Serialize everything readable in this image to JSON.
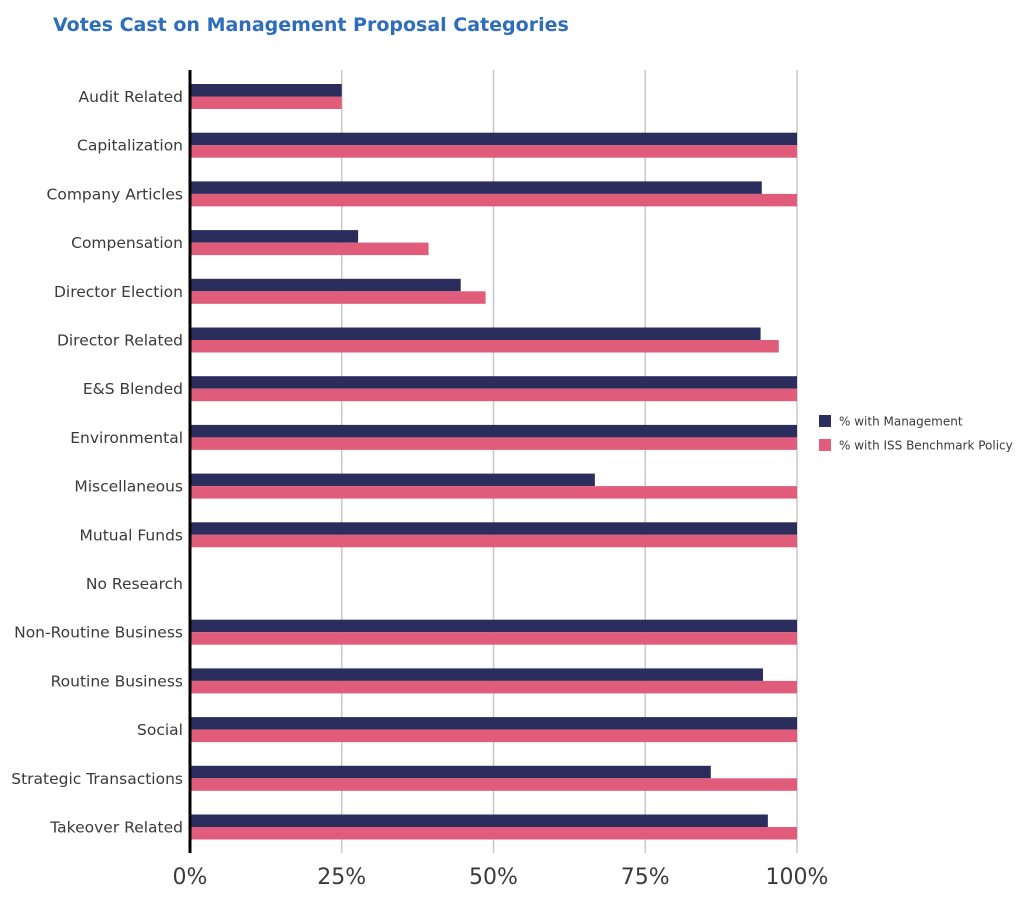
{
  "chart_data": {
    "type": "bar",
    "orientation": "horizontal",
    "title": "Votes Cast on Management Proposal Categories",
    "categories": [
      "Audit Related",
      "Capitalization",
      "Company Articles",
      "Compensation",
      "Director Election",
      "Director Related",
      "E&S Blended",
      "Environmental",
      "Miscellaneous",
      "Mutual Funds",
      "No Research",
      "Non-Routine Business",
      "Routine Business",
      "Social",
      "Strategic Transactions",
      "Takeover Related"
    ],
    "series": [
      {
        "name": "% with Management",
        "color": "#2b2d5c",
        "values": [
          25,
          100,
          94.2,
          27.7,
          44.6,
          94,
          100,
          100,
          66.7,
          100,
          0,
          100,
          94.4,
          100,
          85.8,
          95.2
        ]
      },
      {
        "name": "% with ISS Benchmark Policy",
        "color": "#e05c7a",
        "values": [
          25,
          100,
          100,
          39.3,
          48.7,
          97,
          100,
          100,
          100,
          100,
          0,
          100,
          100,
          100,
          100,
          100
        ]
      }
    ],
    "xlim": [
      0,
      100
    ],
    "xticks": [
      "0%",
      "25%",
      "50%",
      "75%",
      "100%"
    ],
    "grid": true,
    "legend_position": "right"
  }
}
